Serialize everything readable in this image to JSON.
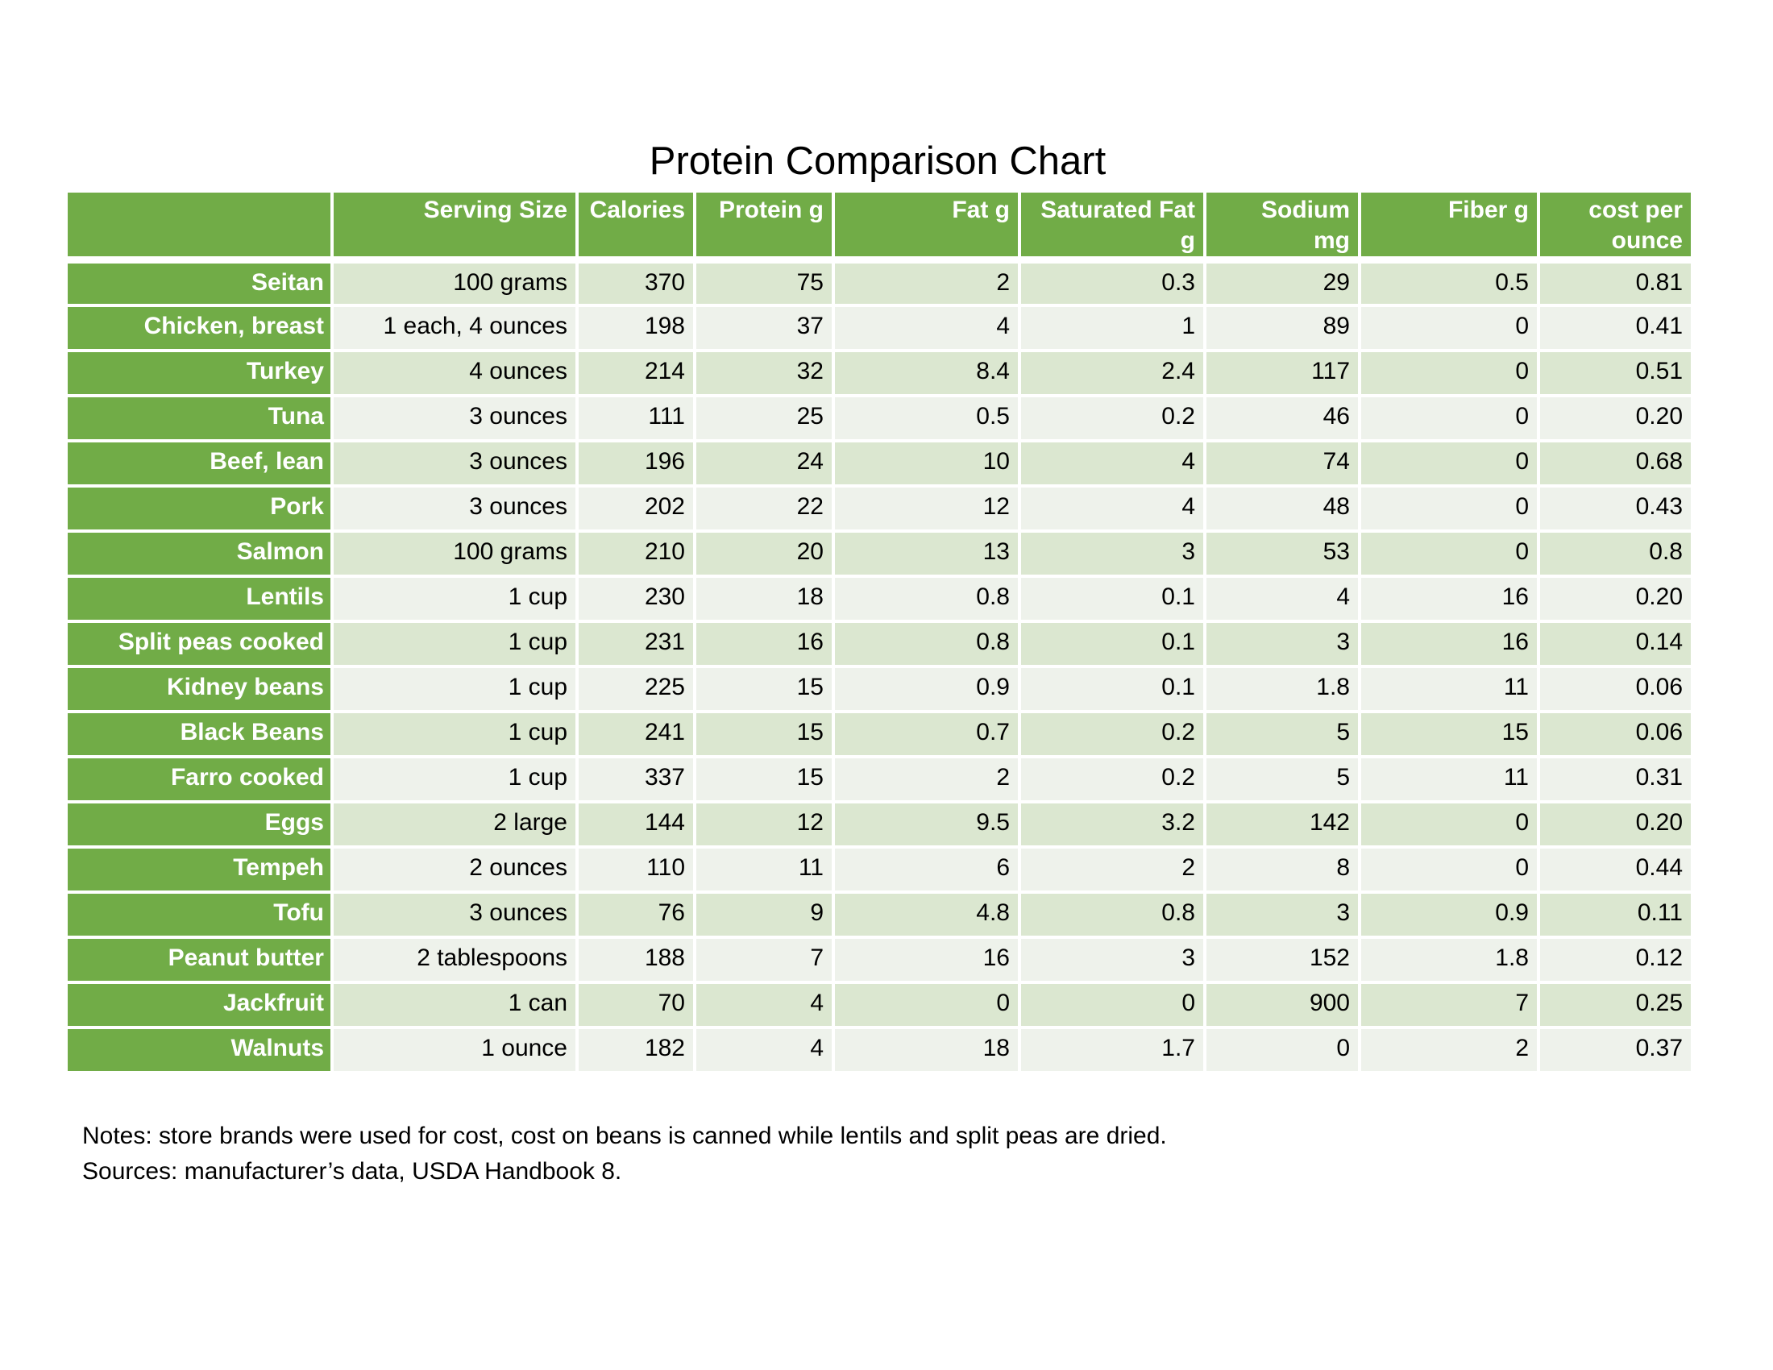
{
  "chart_data": {
    "type": "table",
    "title": "Protein Comparison Chart",
    "columns": [
      "",
      "Serving Size",
      "Calories",
      "Protein g",
      "Fat g",
      "Saturated Fat\ng",
      "Sodium\nmg",
      "Fiber g",
      "cost per\nounce"
    ],
    "rows": [
      [
        "Seitan",
        "100 grams",
        "370",
        "75",
        "2",
        "0.3",
        "29",
        "0.5",
        "0.81"
      ],
      [
        "Chicken, breast",
        "1 each, 4 ounces",
        "198",
        "37",
        "4",
        "1",
        "89",
        "0",
        "0.41"
      ],
      [
        "Turkey",
        "4 ounces",
        "214",
        "32",
        "8.4",
        "2.4",
        "117",
        "0",
        "0.51"
      ],
      [
        "Tuna",
        "3 ounces",
        "111",
        "25",
        "0.5",
        "0.2",
        "46",
        "0",
        "0.20"
      ],
      [
        "Beef, lean",
        "3 ounces",
        "196",
        "24",
        "10",
        "4",
        "74",
        "0",
        "0.68"
      ],
      [
        "Pork",
        "3 ounces",
        "202",
        "22",
        "12",
        "4",
        "48",
        "0",
        "0.43"
      ],
      [
        "Salmon",
        "100 grams",
        "210",
        "20",
        "13",
        "3",
        "53",
        "0",
        "0.8"
      ],
      [
        "Lentils",
        "1 cup",
        "230",
        "18",
        "0.8",
        "0.1",
        "4",
        "16",
        "0.20"
      ],
      [
        "Split peas cooked",
        "1 cup",
        "231",
        "16",
        "0.8",
        "0.1",
        "3",
        "16",
        "0.14"
      ],
      [
        "Kidney beans",
        "1 cup",
        "225",
        "15",
        "0.9",
        "0.1",
        "1.8",
        "11",
        "0.06"
      ],
      [
        "Black Beans",
        "1 cup",
        "241",
        "15",
        "0.7",
        "0.2",
        "5",
        "15",
        "0.06"
      ],
      [
        "Farro cooked",
        "1 cup",
        "337",
        "15",
        "2",
        "0.2",
        "5",
        "11",
        "0.31"
      ],
      [
        "Eggs",
        "2 large",
        "144",
        "12",
        "9.5",
        "3.2",
        "142",
        "0",
        "0.20"
      ],
      [
        "Tempeh",
        "2 ounces",
        "110",
        "11",
        "6",
        "2",
        "8",
        "0",
        "0.44"
      ],
      [
        "Tofu",
        "3 ounces",
        "76",
        "9",
        "4.8",
        "0.8",
        "3",
        "0.9",
        "0.11"
      ],
      [
        "Peanut butter",
        "2 tablespoons",
        "188",
        "7",
        "16",
        "3",
        "152",
        "1.8",
        "0.12"
      ],
      [
        "Jackfruit",
        "1 can",
        "70",
        "4",
        "0",
        "0",
        "900",
        "7",
        "0.25"
      ],
      [
        "Walnuts",
        "1 ounce",
        "182",
        "4",
        "18",
        "1.7",
        "0",
        "2",
        "0.37"
      ]
    ]
  },
  "notes": {
    "line1": "Notes: store brands were used for cost, cost on beans is canned while lentils and split peas are dried.",
    "line2": "Sources: manufacturer’s data, USDA Handbook 8."
  },
  "colors": {
    "header_green": "#71AC47",
    "band_dark": "#DBE7D0",
    "band_light": "#EEF2EB",
    "gridline": "#FFFFFF",
    "header_text": "#FFFFFF",
    "body_text": "#000000"
  }
}
